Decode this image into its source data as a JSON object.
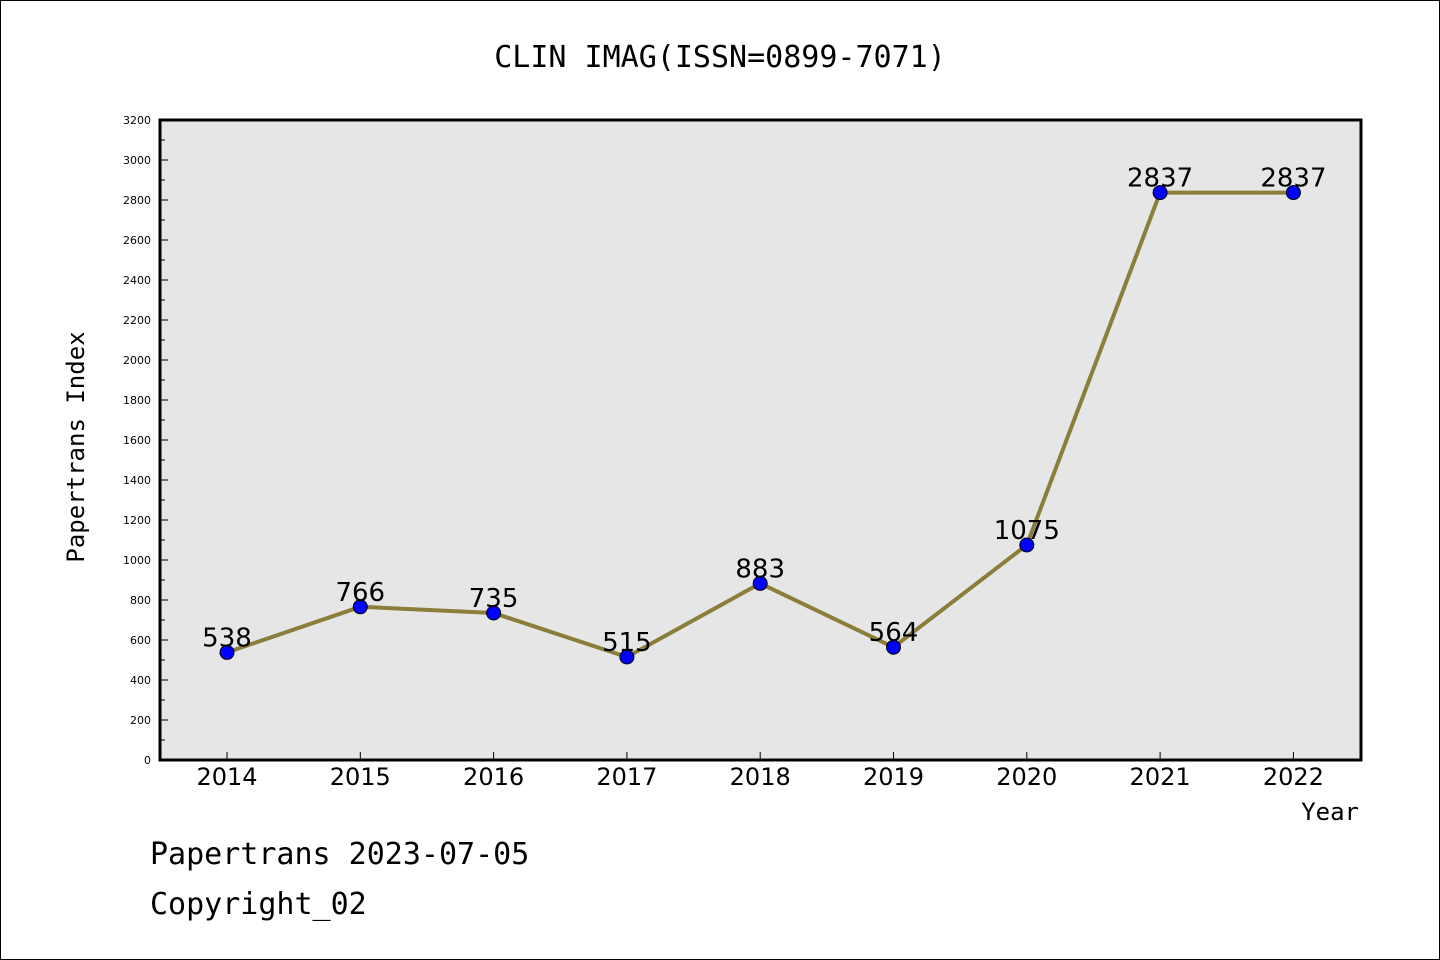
{
  "footer": {
    "line1": "Papertrans 2023-07-05",
    "line2": "Copyright_02"
  },
  "chart_data": {
    "type": "line",
    "title": "CLIN IMAG(ISSN=0899-7071)",
    "xlabel": "Year",
    "ylabel": "Papertrans Index",
    "categories": [
      "2014",
      "2015",
      "2016",
      "2017",
      "2018",
      "2019",
      "2020",
      "2021",
      "2022"
    ],
    "series": [
      {
        "values": [
          538,
          766,
          735,
          515,
          883,
          564,
          1075,
          2837,
          2837
        ]
      }
    ],
    "data_labels": [
      "538",
      "766",
      "735",
      "515",
      "883",
      "564",
      "1075",
      "2837",
      "2837"
    ],
    "ylim": [
      0,
      3200
    ],
    "yticks": [
      0,
      200,
      400,
      600,
      800,
      1000,
      1200,
      1400,
      1600,
      1800,
      2000,
      2200,
      2400,
      2600,
      2800,
      3000,
      3200
    ],
    "grid": false,
    "colors": {
      "line": "#8b7d3a",
      "marker": "#0000ff",
      "plot_background": "#e6e6e6"
    }
  }
}
